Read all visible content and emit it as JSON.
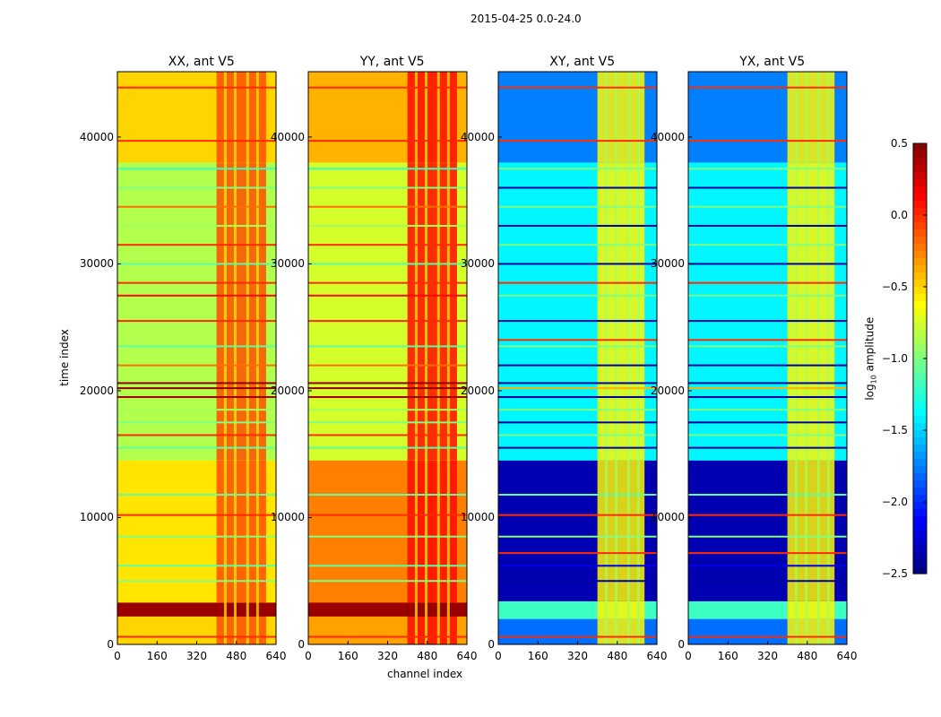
{
  "chart_data": {
    "type": "heatmap",
    "suptitle": "2015-04-25 0.0-24.0",
    "xlabel": "channel index",
    "ylabel": "time index",
    "xlim": [
      0,
      640
    ],
    "ylim": [
      0,
      45150
    ],
    "xticks": [
      0,
      160,
      320,
      480,
      640
    ],
    "yticks": [
      0,
      10000,
      20000,
      30000,
      40000
    ],
    "colorbar": {
      "label": "log10 amplitude",
      "vmin": -2.5,
      "vmax": 0.5,
      "ticks": [
        "0.5",
        "0.0",
        "−0.5",
        "−1.0",
        "−1.5",
        "−2.0",
        "−2.5"
      ],
      "tick_values": [
        0.5,
        0,
        -0.5,
        -1,
        -1.5,
        -2,
        -2.5
      ],
      "cmap": "jet"
    },
    "panels": [
      {
        "title": "XX, ant V5",
        "base": -0.55,
        "rfi": -0.1,
        "rfi_range": [
          400,
          600
        ],
        "bands": [
          [
            0,
            2200,
            -0.5
          ],
          [
            2200,
            3300,
            0.42
          ],
          [
            3300,
            14500,
            -0.55
          ],
          [
            14500,
            38000,
            -0.85
          ],
          [
            38000,
            45150,
            -0.5
          ]
        ],
        "stripes": [
          [
            600,
            0.0
          ],
          [
            5000,
            -1.0
          ],
          [
            6200,
            -1.1
          ],
          [
            8500,
            -1.0
          ],
          [
            10200,
            0.0
          ],
          [
            11800,
            -1.1
          ],
          [
            15500,
            -1.1
          ],
          [
            16500,
            0.0
          ],
          [
            17500,
            -1.0
          ],
          [
            18500,
            -0.9
          ],
          [
            19500,
            0.4
          ],
          [
            20200,
            0.45
          ],
          [
            20600,
            0.45
          ],
          [
            22000,
            -0.2
          ],
          [
            23500,
            -1.1
          ],
          [
            25500,
            0.0
          ],
          [
            27500,
            0.1
          ],
          [
            28500,
            0.0
          ],
          [
            30000,
            -1.1
          ],
          [
            31500,
            0.0
          ],
          [
            33000,
            -0.9
          ],
          [
            34500,
            -0.2
          ],
          [
            36000,
            -1.0
          ],
          [
            37500,
            -1.2
          ],
          [
            39700,
            0.0
          ],
          [
            43900,
            0.0
          ]
        ]
      },
      {
        "title": "YY, ant V5",
        "base": -0.35,
        "rfi": 0.1,
        "rfi_range": [
          400,
          600
        ],
        "bands": [
          [
            0,
            2200,
            -0.35
          ],
          [
            2200,
            3300,
            0.42
          ],
          [
            3300,
            14500,
            -0.25
          ],
          [
            14500,
            38000,
            -0.75
          ],
          [
            38000,
            45150,
            -0.4
          ]
        ],
        "stripes": [
          [
            600,
            0.0
          ],
          [
            5000,
            -1.0
          ],
          [
            6200,
            -1.1
          ],
          [
            8500,
            -1.0
          ],
          [
            10200,
            0.0
          ],
          [
            11800,
            -1.1
          ],
          [
            15500,
            -1.1
          ],
          [
            16500,
            0.0
          ],
          [
            17500,
            -1.0
          ],
          [
            18500,
            -0.9
          ],
          [
            19500,
            0.4
          ],
          [
            20200,
            0.45
          ],
          [
            20600,
            0.45
          ],
          [
            22000,
            -0.2
          ],
          [
            23500,
            -1.1
          ],
          [
            25500,
            0.0
          ],
          [
            27500,
            0.1
          ],
          [
            28500,
            0.0
          ],
          [
            30000,
            -1.1
          ],
          [
            31500,
            0.0
          ],
          [
            33000,
            -0.9
          ],
          [
            34500,
            -0.2
          ],
          [
            36000,
            -1.0
          ],
          [
            37500,
            -1.2
          ],
          [
            39700,
            0.0
          ],
          [
            43900,
            0.0
          ]
        ]
      },
      {
        "title": "XY, ant V5",
        "base": -1.75,
        "rfi": -0.6,
        "rfi_range": [
          400,
          590
        ],
        "bands": [
          [
            0,
            2000,
            -1.8
          ],
          [
            2000,
            3400,
            -1.2
          ],
          [
            3400,
            14500,
            -2.35
          ],
          [
            14500,
            38000,
            -1.4
          ],
          [
            38000,
            45150,
            -1.75
          ]
        ],
        "stripes": [
          [
            600,
            0.0
          ],
          [
            5000,
            -2.4
          ],
          [
            6200,
            -2.2
          ],
          [
            7200,
            0.0
          ],
          [
            8500,
            -1.0
          ],
          [
            10200,
            0.0
          ],
          [
            11800,
            -1.1
          ],
          [
            15500,
            -2.4
          ],
          [
            16500,
            -1.0
          ],
          [
            17500,
            -2.4
          ],
          [
            18500,
            -1.0
          ],
          [
            19500,
            -2.4
          ],
          [
            20200,
            -0.4
          ],
          [
            20600,
            -2.4
          ],
          [
            22000,
            -2.4
          ],
          [
            23500,
            -1.0
          ],
          [
            24000,
            0.0
          ],
          [
            25500,
            -2.4
          ],
          [
            27500,
            -1.0
          ],
          [
            28500,
            0.0
          ],
          [
            30000,
            -2.4
          ],
          [
            31500,
            -1.0
          ],
          [
            33000,
            -2.4
          ],
          [
            34500,
            -1.0
          ],
          [
            36000,
            -2.4
          ],
          [
            37500,
            -1.0
          ],
          [
            39700,
            0.0
          ],
          [
            43900,
            0.0
          ]
        ]
      },
      {
        "title": "YX, ant V5",
        "base": -1.75,
        "rfi": -0.6,
        "rfi_range": [
          400,
          590
        ],
        "bands": [
          [
            0,
            2000,
            -1.8
          ],
          [
            2000,
            3400,
            -1.2
          ],
          [
            3400,
            14500,
            -2.35
          ],
          [
            14500,
            38000,
            -1.4
          ],
          [
            38000,
            45150,
            -1.75
          ]
        ],
        "stripes": [
          [
            600,
            0.0
          ],
          [
            5000,
            -2.4
          ],
          [
            6200,
            -2.2
          ],
          [
            7200,
            0.0
          ],
          [
            8500,
            -1.0
          ],
          [
            10200,
            0.0
          ],
          [
            11800,
            -1.1
          ],
          [
            15500,
            -2.4
          ],
          [
            16500,
            -1.0
          ],
          [
            17500,
            -2.4
          ],
          [
            18500,
            -1.0
          ],
          [
            19500,
            -2.4
          ],
          [
            20200,
            -0.4
          ],
          [
            20600,
            -2.4
          ],
          [
            22000,
            -2.4
          ],
          [
            23500,
            -1.0
          ],
          [
            24000,
            0.0
          ],
          [
            25500,
            -2.4
          ],
          [
            27500,
            -1.0
          ],
          [
            28500,
            0.0
          ],
          [
            30000,
            -2.4
          ],
          [
            31500,
            -1.0
          ],
          [
            33000,
            -2.4
          ],
          [
            34500,
            -1.0
          ],
          [
            36000,
            -2.4
          ],
          [
            37500,
            -1.0
          ],
          [
            39700,
            0.0
          ],
          [
            43900,
            0.0
          ]
        ]
      }
    ]
  }
}
